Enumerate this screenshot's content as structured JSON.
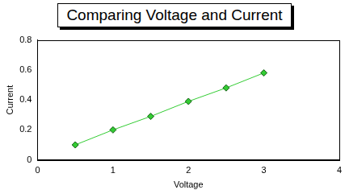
{
  "chart_data": {
    "type": "line",
    "title": "Comparing Voltage and Current",
    "x_label": "Voltage",
    "y_label": "Current",
    "x": [
      0.5,
      1,
      1.5,
      2,
      2.5,
      3
    ],
    "values": [
      0.1,
      0.2,
      0.29,
      0.39,
      0.48,
      0.58
    ],
    "color": "#33cc33",
    "marker": "diamond",
    "line_style": "solid",
    "xlim": [
      0,
      4
    ],
    "xticks": [
      0,
      1,
      2,
      3,
      4
    ],
    "ylim": [
      0,
      0.8
    ],
    "yticks": [
      0,
      0.2,
      0.4,
      0.6,
      0.8
    ],
    "grid": false
  }
}
